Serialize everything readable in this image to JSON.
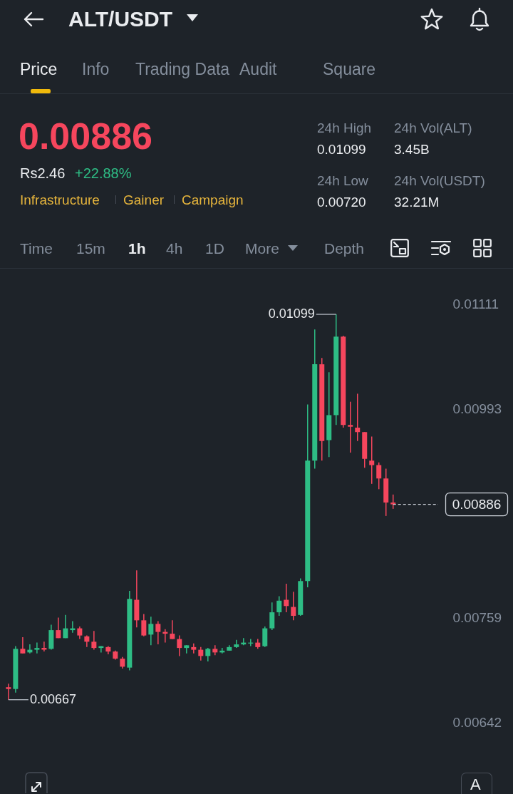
{
  "chart_data": {
    "type": "candlestick",
    "title": "ALT/USDT",
    "subtitle": "0.00886",
    "categories": [
      null,
      null,
      null,
      null,
      null,
      null,
      null,
      null,
      null,
      null,
      null,
      null,
      null,
      null,
      null,
      null,
      null,
      null,
      null,
      null,
      null,
      null,
      null,
      null,
      null,
      null,
      null,
      null,
      null,
      null,
      null,
      null,
      null,
      null,
      null,
      null,
      null,
      null,
      null,
      null,
      null,
      null,
      null,
      null,
      null,
      null,
      null,
      null,
      null,
      null,
      null,
      null,
      null,
      null,
      null
    ],
    "ohlc": [
      [
        0.00681,
        0.00685,
        0.00667,
        0.00679
      ],
      [
        0.00679,
        0.00727,
        0.00675,
        0.00724
      ],
      [
        0.00724,
        0.00737,
        0.00719,
        0.00719
      ],
      [
        0.0072,
        0.00729,
        0.00719,
        0.00723
      ],
      [
        0.00723,
        0.00731,
        0.00719,
        0.00725
      ],
      [
        0.00725,
        0.00732,
        0.00721,
        0.00723
      ],
      [
        0.00724,
        0.00751,
        0.00723,
        0.00745
      ],
      [
        0.00745,
        0.00759,
        0.00736,
        0.00736
      ],
      [
        0.00736,
        0.00762,
        0.00736,
        0.00747
      ],
      [
        0.00745,
        0.00755,
        0.00742,
        0.00747
      ],
      [
        0.00747,
        0.00749,
        0.00735,
        0.00739
      ],
      [
        0.00738,
        0.00739,
        0.00726,
        0.00732
      ],
      [
        0.00732,
        0.00744,
        0.00723,
        0.00725
      ],
      [
        0.00725,
        0.00727,
        0.0072,
        0.00727
      ],
      [
        0.00726,
        0.00727,
        0.00718,
        0.00721
      ],
      [
        0.00721,
        0.00722,
        0.00712,
        0.00713
      ],
      [
        0.00713,
        0.00715,
        0.00702,
        0.00704
      ],
      [
        0.00703,
        0.00789,
        0.007,
        0.0078
      ],
      [
        0.00779,
        0.00812,
        0.00748,
        0.00756
      ],
      [
        0.00756,
        0.00763,
        0.00738,
        0.00739
      ],
      [
        0.0074,
        0.0076,
        0.00728,
        0.00752
      ],
      [
        0.00752,
        0.00755,
        0.00729,
        0.00743
      ],
      [
        0.00743,
        0.00746,
        0.00731,
        0.00741
      ],
      [
        0.00741,
        0.00756,
        0.00735,
        0.00735
      ],
      [
        0.00735,
        0.00739,
        0.00716,
        0.00725
      ],
      [
        0.00725,
        0.00728,
        0.00719,
        0.00728
      ],
      [
        0.00726,
        0.0073,
        0.00719,
        0.00723
      ],
      [
        0.00723,
        0.00726,
        0.00711,
        0.00716
      ],
      [
        0.00716,
        0.00725,
        0.0071,
        0.00724
      ],
      [
        0.00724,
        0.00728,
        0.00717,
        0.0072
      ],
      [
        0.0072,
        0.00725,
        0.00719,
        0.00722
      ],
      [
        0.00722,
        0.00728,
        0.00722,
        0.00726
      ],
      [
        0.00726,
        0.00734,
        0.00725,
        0.00729
      ],
      [
        0.00729,
        0.00736,
        0.00728,
        0.00731
      ],
      [
        0.0073,
        0.00735,
        0.00727,
        0.00731
      ],
      [
        0.00731,
        0.00735,
        0.00724,
        0.00726
      ],
      [
        0.00727,
        0.00749,
        0.00726,
        0.00747
      ],
      [
        0.00747,
        0.00776,
        0.00745,
        0.00765
      ],
      [
        0.00765,
        0.00783,
        0.00761,
        0.00778
      ],
      [
        0.00779,
        0.00797,
        0.00765,
        0.00772
      ],
      [
        0.00771,
        0.00788,
        0.00756,
        0.00761
      ],
      [
        0.00762,
        0.00803,
        0.00761,
        0.008
      ],
      [
        0.008,
        0.00998,
        0.00793,
        0.00935
      ],
      [
        0.00935,
        0.01082,
        0.00926,
        0.01043
      ],
      [
        0.01043,
        0.0105,
        0.00935,
        0.00957
      ],
      [
        0.00958,
        0.01034,
        0.00939,
        0.00986
      ],
      [
        0.00986,
        0.01099,
        0.00975,
        0.01074
      ],
      [
        0.01074,
        0.01075,
        0.00972,
        0.00975
      ],
      [
        0.00975,
        0.01001,
        0.00944,
        0.00973
      ],
      [
        0.00972,
        0.0101,
        0.00957,
        0.00967
      ],
      [
        0.00967,
        0.00967,
        0.00927,
        0.00937
      ],
      [
        0.00935,
        0.00962,
        0.00909,
        0.0093
      ],
      [
        0.0093,
        0.00933,
        0.00903,
        0.00915
      ],
      [
        0.00915,
        0.00926,
        0.00873,
        0.00888
      ],
      [
        0.00888,
        0.00897,
        0.00881,
        0.00886
      ]
    ],
    "colors": [
      "#f6465d",
      "#2ebd85",
      "#f6465d",
      "#2ebd85",
      "#2ebd85",
      "#f6465d",
      "#2ebd85",
      "#f6465d",
      "#2ebd85",
      "#2ebd85",
      "#f6465d",
      "#f6465d",
      "#f6465d",
      "#2ebd85",
      "#f6465d",
      "#f6465d",
      "#f6465d",
      "#2ebd85",
      "#f6465d",
      "#f6465d",
      "#2ebd85",
      "#f6465d",
      "#f6465d",
      "#f6465d",
      "#f6465d",
      "#2ebd85",
      "#f6465d",
      "#f6465d",
      "#2ebd85",
      "#f6465d",
      "#2ebd85",
      "#2ebd85",
      "#2ebd85",
      "#2ebd85",
      "#2ebd85",
      "#f6465d",
      "#2ebd85",
      "#2ebd85",
      "#2ebd85",
      "#f6465d",
      "#f6465d",
      "#2ebd85",
      "#2ebd85",
      "#2ebd85",
      "#f6465d",
      "#2ebd85",
      "#2ebd85",
      "#f6465d",
      "#f6465d",
      "#f6465d",
      "#f6465d",
      "#f6465d",
      "#f6465d",
      "#f6465d",
      "#f6465d"
    ],
    "ylim": [
      0.00642,
      0.01111
    ],
    "yticks": [
      0.01111,
      0.00993,
      0.00759,
      0.00642
    ],
    "ref_lines": [
      {
        "axis": "y",
        "value": 0.00886,
        "label": "0.00886",
        "color": "#c9ced6",
        "line_style": "dashed"
      }
    ],
    "annotations": [
      "Price",
      "Info",
      "Trading Data",
      "Audit",
      "Square",
      "Rs2.46",
      "+22.88%",
      "Infrastructure",
      "Gainer",
      "Campaign",
      "24h High",
      "0.01099",
      "24h Vol(ALT)",
      "3.45B",
      "24h Low",
      "0.00720",
      "24h Vol(USDT)",
      "32.21M",
      "Time",
      "15m",
      "1h",
      "4h",
      "1D",
      "More",
      "Depth",
      "A",
      "0.01099",
      "0.00667"
    ]
  }
}
